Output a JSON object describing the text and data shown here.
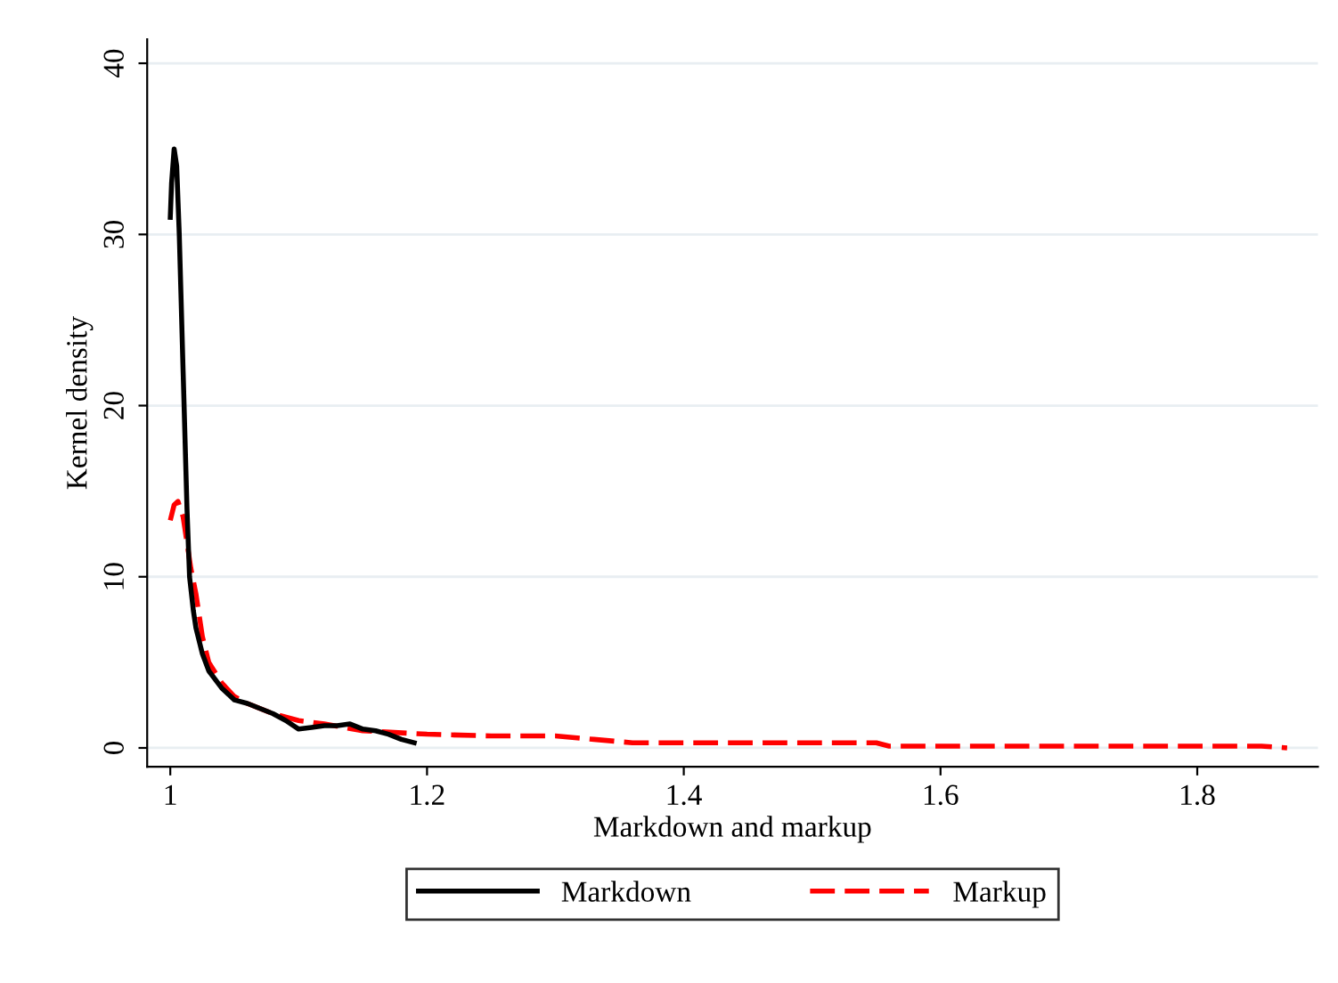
{
  "chart_data": {
    "type": "line",
    "xlabel": "Markdown and markup",
    "ylabel": "Kernel density",
    "xlim": [
      0.982,
      1.894
    ],
    "xticks": [
      1,
      1.2,
      1.4,
      1.6,
      1.8
    ],
    "ylim": [
      -1.1,
      41.4
    ],
    "yticks": [
      0,
      10,
      20,
      30,
      40
    ],
    "grid": "y",
    "legend": "bottom",
    "series": [
      {
        "name": "Markdown",
        "color": "#000000",
        "line_style": "solid",
        "x": [
          1.0,
          1.001,
          1.003,
          1.005,
          1.007,
          1.01,
          1.013,
          1.015,
          1.018,
          1.02,
          1.025,
          1.03,
          1.04,
          1.05,
          1.06,
          1.07,
          1.08,
          1.09,
          1.1,
          1.11,
          1.12,
          1.13,
          1.14,
          1.15,
          1.16,
          1.17,
          1.18,
          1.19
        ],
        "values": [
          31,
          33,
          35,
          34,
          30,
          22,
          14,
          10,
          8,
          7,
          5.5,
          4.5,
          3.5,
          2.8,
          2.6,
          2.3,
          2.0,
          1.6,
          1.1,
          1.2,
          1.3,
          1.3,
          1.4,
          1.1,
          1.0,
          0.8,
          0.5,
          0.3
        ]
      },
      {
        "name": "Markup",
        "color": "#ff0000",
        "line_style": "dashed",
        "x": [
          1.0,
          1.003,
          1.006,
          1.01,
          1.013,
          1.016,
          1.02,
          1.025,
          1.03,
          1.04,
          1.05,
          1.06,
          1.08,
          1.1,
          1.12,
          1.15,
          1.2,
          1.25,
          1.3,
          1.33,
          1.36,
          1.45,
          1.55,
          1.56,
          1.7,
          1.85,
          1.87
        ],
        "values": [
          13.3,
          14.2,
          14.4,
          13.5,
          12,
          10.5,
          9,
          6.5,
          5,
          3.8,
          3.0,
          2.6,
          2.0,
          1.6,
          1.4,
          1.0,
          0.8,
          0.7,
          0.7,
          0.5,
          0.3,
          0.3,
          0.3,
          0.1,
          0.1,
          0.1,
          0.0
        ]
      }
    ]
  }
}
